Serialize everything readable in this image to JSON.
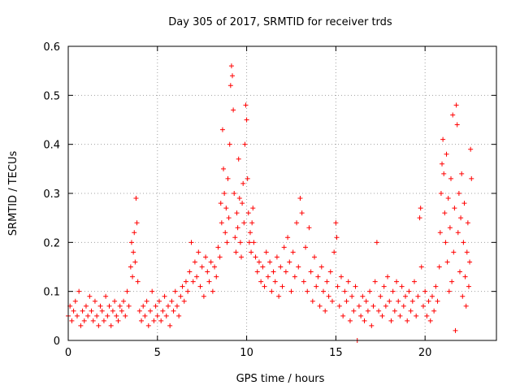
{
  "chart_data": {
    "type": "scatter",
    "title": "Day 305 of 2017, SRMTID for receiver trds",
    "xlabel": "GPS time / hours",
    "ylabel": "SRMTID / TECUs",
    "xlim": [
      0,
      24
    ],
    "ylim": [
      0,
      0.6
    ],
    "x_ticks": [
      0,
      5,
      10,
      15,
      20
    ],
    "x_tick_labels": [
      "0",
      "5",
      "10",
      "15",
      "20"
    ],
    "y_ticks": [
      0,
      0.1,
      0.2,
      0.3,
      0.4,
      0.5,
      0.6
    ],
    "y_tick_labels": [
      "0",
      "0.1",
      "0.2",
      "0.3",
      "0.4",
      "0.5",
      "0.6"
    ],
    "grid": true,
    "marker": "+",
    "color": "#ff0000",
    "series": [
      {
        "name": "SRMTID",
        "points": [
          [
            0.0,
            0.05
          ],
          [
            0.1,
            0.07
          ],
          [
            0.2,
            0.04
          ],
          [
            0.3,
            0.06
          ],
          [
            0.4,
            0.08
          ],
          [
            0.5,
            0.05
          ],
          [
            0.6,
            0.1
          ],
          [
            0.7,
            0.03
          ],
          [
            0.8,
            0.06
          ],
          [
            0.9,
            0.04
          ],
          [
            1.0,
            0.07
          ],
          [
            1.1,
            0.05
          ],
          [
            1.2,
            0.09
          ],
          [
            1.3,
            0.06
          ],
          [
            1.4,
            0.04
          ],
          [
            1.5,
            0.08
          ],
          [
            1.6,
            0.05
          ],
          [
            1.7,
            0.03
          ],
          [
            1.8,
            0.07
          ],
          [
            1.9,
            0.06
          ],
          [
            2.0,
            0.04
          ],
          [
            2.1,
            0.09
          ],
          [
            2.2,
            0.05
          ],
          [
            2.3,
            0.07
          ],
          [
            2.4,
            0.03
          ],
          [
            2.5,
            0.06
          ],
          [
            2.6,
            0.08
          ],
          [
            2.7,
            0.05
          ],
          [
            2.8,
            0.04
          ],
          [
            2.9,
            0.07
          ],
          [
            3.0,
            0.06
          ],
          [
            3.1,
            0.08
          ],
          [
            3.2,
            0.05
          ],
          [
            3.3,
            0.1
          ],
          [
            3.4,
            0.07
          ],
          [
            3.5,
            0.15
          ],
          [
            3.55,
            0.2
          ],
          [
            3.6,
            0.13
          ],
          [
            3.65,
            0.18
          ],
          [
            3.7,
            0.22
          ],
          [
            3.75,
            0.16
          ],
          [
            3.8,
            0.29
          ],
          [
            3.85,
            0.24
          ],
          [
            3.9,
            0.12
          ],
          [
            4.0,
            0.06
          ],
          [
            4.1,
            0.04
          ],
          [
            4.2,
            0.07
          ],
          [
            4.3,
            0.05
          ],
          [
            4.4,
            0.08
          ],
          [
            4.5,
            0.03
          ],
          [
            4.6,
            0.06
          ],
          [
            4.7,
            0.1
          ],
          [
            4.8,
            0.04
          ],
          [
            4.9,
            0.07
          ],
          [
            5.0,
            0.05
          ],
          [
            5.1,
            0.08
          ],
          [
            5.2,
            0.04
          ],
          [
            5.3,
            0.06
          ],
          [
            5.4,
            0.09
          ],
          [
            5.5,
            0.05
          ],
          [
            5.6,
            0.07
          ],
          [
            5.7,
            0.03
          ],
          [
            5.8,
            0.08
          ],
          [
            5.9,
            0.06
          ],
          [
            6.0,
            0.1
          ],
          [
            6.1,
            0.07
          ],
          [
            6.2,
            0.05
          ],
          [
            6.3,
            0.09
          ],
          [
            6.4,
            0.11
          ],
          [
            6.5,
            0.08
          ],
          [
            6.6,
            0.12
          ],
          [
            6.7,
            0.1
          ],
          [
            6.8,
            0.14
          ],
          [
            6.9,
            0.2
          ],
          [
            7.0,
            0.12
          ],
          [
            7.1,
            0.16
          ],
          [
            7.2,
            0.13
          ],
          [
            7.3,
            0.18
          ],
          [
            7.4,
            0.11
          ],
          [
            7.5,
            0.15
          ],
          [
            7.6,
            0.09
          ],
          [
            7.7,
            0.17
          ],
          [
            7.8,
            0.14
          ],
          [
            7.9,
            0.12
          ],
          [
            8.0,
            0.16
          ],
          [
            8.1,
            0.1
          ],
          [
            8.2,
            0.15
          ],
          [
            8.3,
            0.13
          ],
          [
            8.4,
            0.19
          ],
          [
            8.5,
            0.17
          ],
          [
            8.55,
            0.28
          ],
          [
            8.6,
            0.24
          ],
          [
            8.65,
            0.43
          ],
          [
            8.7,
            0.35
          ],
          [
            8.75,
            0.3
          ],
          [
            8.8,
            0.22
          ],
          [
            8.85,
            0.27
          ],
          [
            8.9,
            0.2
          ],
          [
            8.95,
            0.33
          ],
          [
            9.0,
            0.25
          ],
          [
            9.05,
            0.4
          ],
          [
            9.1,
            0.52
          ],
          [
            9.15,
            0.56
          ],
          [
            9.2,
            0.54
          ],
          [
            9.25,
            0.47
          ],
          [
            9.3,
            0.3
          ],
          [
            9.35,
            0.21
          ],
          [
            9.4,
            0.18
          ],
          [
            9.45,
            0.26
          ],
          [
            9.5,
            0.23
          ],
          [
            9.55,
            0.37
          ],
          [
            9.6,
            0.29
          ],
          [
            9.65,
            0.2
          ],
          [
            9.7,
            0.17
          ],
          [
            9.75,
            0.28
          ],
          [
            9.8,
            0.32
          ],
          [
            9.85,
            0.24
          ],
          [
            9.9,
            0.4
          ],
          [
            9.95,
            0.48
          ],
          [
            10.0,
            0.45
          ],
          [
            10.05,
            0.33
          ],
          [
            10.1,
            0.26
          ],
          [
            10.15,
            0.2
          ],
          [
            10.2,
            0.22
          ],
          [
            10.25,
            0.18
          ],
          [
            10.3,
            0.24
          ],
          [
            10.35,
            0.27
          ],
          [
            10.4,
            0.2
          ],
          [
            10.5,
            0.17
          ],
          [
            10.6,
            0.14
          ],
          [
            10.7,
            0.16
          ],
          [
            10.8,
            0.12
          ],
          [
            10.9,
            0.15
          ],
          [
            11.0,
            0.11
          ],
          [
            11.1,
            0.18
          ],
          [
            11.2,
            0.13
          ],
          [
            11.3,
            0.16
          ],
          [
            11.4,
            0.1
          ],
          [
            11.5,
            0.14
          ],
          [
            11.6,
            0.12
          ],
          [
            11.7,
            0.17
          ],
          [
            11.8,
            0.09
          ],
          [
            11.9,
            0.15
          ],
          [
            12.0,
            0.11
          ],
          [
            12.1,
            0.19
          ],
          [
            12.2,
            0.14
          ],
          [
            12.3,
            0.21
          ],
          [
            12.4,
            0.16
          ],
          [
            12.5,
            0.1
          ],
          [
            12.6,
            0.18
          ],
          [
            12.7,
            0.13
          ],
          [
            12.8,
            0.24
          ],
          [
            12.9,
            0.15
          ],
          [
            13.0,
            0.29
          ],
          [
            13.1,
            0.26
          ],
          [
            13.2,
            0.12
          ],
          [
            13.3,
            0.19
          ],
          [
            13.4,
            0.1
          ],
          [
            13.5,
            0.23
          ],
          [
            13.6,
            0.14
          ],
          [
            13.7,
            0.08
          ],
          [
            13.8,
            0.17
          ],
          [
            13.9,
            0.11
          ],
          [
            14.0,
            0.13
          ],
          [
            14.1,
            0.07
          ],
          [
            14.2,
            0.15
          ],
          [
            14.3,
            0.1
          ],
          [
            14.4,
            0.06
          ],
          [
            14.5,
            0.12
          ],
          [
            14.6,
            0.09
          ],
          [
            14.7,
            0.14
          ],
          [
            14.8,
            0.08
          ],
          [
            14.9,
            0.18
          ],
          [
            15.0,
            0.24
          ],
          [
            15.05,
            0.21
          ],
          [
            15.1,
            0.11
          ],
          [
            15.2,
            0.07
          ],
          [
            15.3,
            0.13
          ],
          [
            15.4,
            0.05
          ],
          [
            15.5,
            0.1
          ],
          [
            15.6,
            0.08
          ],
          [
            15.7,
            0.12
          ],
          [
            15.8,
            0.04
          ],
          [
            15.9,
            0.09
          ],
          [
            16.0,
            0.06
          ],
          [
            16.1,
            0.11
          ],
          [
            16.2,
            0.0
          ],
          [
            16.3,
            0.07
          ],
          [
            16.4,
            0.05
          ],
          [
            16.5,
            0.09
          ],
          [
            16.6,
            0.04
          ],
          [
            16.7,
            0.08
          ],
          [
            16.8,
            0.06
          ],
          [
            16.9,
            0.1
          ],
          [
            17.0,
            0.03
          ],
          [
            17.1,
            0.07
          ],
          [
            17.2,
            0.12
          ],
          [
            17.3,
            0.2
          ],
          [
            17.4,
            0.06
          ],
          [
            17.5,
            0.09
          ],
          [
            17.6,
            0.05
          ],
          [
            17.7,
            0.11
          ],
          [
            17.8,
            0.07
          ],
          [
            17.9,
            0.13
          ],
          [
            18.0,
            0.08
          ],
          [
            18.1,
            0.04
          ],
          [
            18.2,
            0.1
          ],
          [
            18.3,
            0.06
          ],
          [
            18.4,
            0.12
          ],
          [
            18.5,
            0.08
          ],
          [
            18.6,
            0.05
          ],
          [
            18.7,
            0.11
          ],
          [
            18.8,
            0.07
          ],
          [
            18.9,
            0.09
          ],
          [
            19.0,
            0.04
          ],
          [
            19.1,
            0.1
          ],
          [
            19.2,
            0.06
          ],
          [
            19.3,
            0.08
          ],
          [
            19.4,
            0.12
          ],
          [
            19.5,
            0.05
          ],
          [
            19.6,
            0.09
          ],
          [
            19.7,
            0.25
          ],
          [
            19.75,
            0.27
          ],
          [
            19.8,
            0.15
          ],
          [
            19.9,
            0.07
          ],
          [
            20.0,
            0.1
          ],
          [
            20.1,
            0.05
          ],
          [
            20.2,
            0.08
          ],
          [
            20.3,
            0.04
          ],
          [
            20.4,
            0.09
          ],
          [
            20.5,
            0.06
          ],
          [
            20.6,
            0.11
          ],
          [
            20.7,
            0.08
          ],
          [
            20.8,
            0.15
          ],
          [
            20.85,
            0.22
          ],
          [
            20.9,
            0.3
          ],
          [
            20.95,
            0.36
          ],
          [
            21.0,
            0.41
          ],
          [
            21.05,
            0.34
          ],
          [
            21.1,
            0.26
          ],
          [
            21.15,
            0.2
          ],
          [
            21.2,
            0.38
          ],
          [
            21.25,
            0.16
          ],
          [
            21.3,
            0.29
          ],
          [
            21.35,
            0.1
          ],
          [
            21.4,
            0.23
          ],
          [
            21.45,
            0.33
          ],
          [
            21.5,
            0.12
          ],
          [
            21.55,
            0.46
          ],
          [
            21.6,
            0.18
          ],
          [
            21.65,
            0.27
          ],
          [
            21.7,
            0.02
          ],
          [
            21.75,
            0.48
          ],
          [
            21.8,
            0.44
          ],
          [
            21.85,
            0.22
          ],
          [
            21.9,
            0.3
          ],
          [
            21.95,
            0.14
          ],
          [
            22.0,
            0.25
          ],
          [
            22.05,
            0.34
          ],
          [
            22.1,
            0.09
          ],
          [
            22.15,
            0.2
          ],
          [
            22.2,
            0.28
          ],
          [
            22.25,
            0.13
          ],
          [
            22.3,
            0.07
          ],
          [
            22.35,
            0.18
          ],
          [
            22.4,
            0.24
          ],
          [
            22.45,
            0.11
          ],
          [
            22.5,
            0.16
          ],
          [
            22.55,
            0.39
          ],
          [
            22.6,
            0.33
          ]
        ]
      }
    ]
  }
}
